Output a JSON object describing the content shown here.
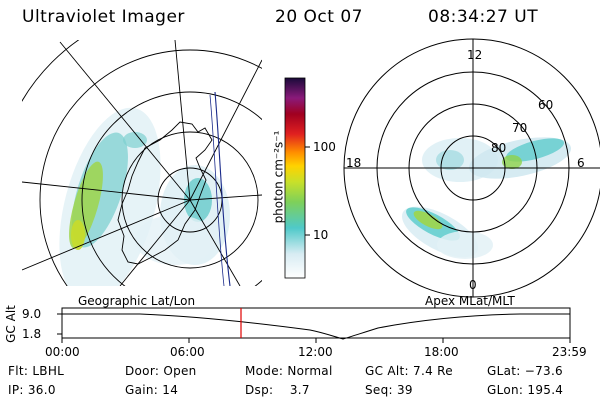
{
  "header": {
    "instrument": "Ultraviolet Imager",
    "date": "20 Oct 07",
    "time": "08:34:27 UT"
  },
  "left_panel": {
    "label": "Geographic Lat/Lon"
  },
  "right_panel": {
    "label": "Apex MLat/MLT",
    "mlt_labels": [
      "12",
      "18",
      "6",
      "0"
    ],
    "lat_labels": [
      "60",
      "70",
      "80"
    ]
  },
  "colorbar": {
    "unit_label": "photon cm⁻²s⁻¹",
    "ticks": [
      "100",
      "10"
    ]
  },
  "timeline": {
    "axis_label": "GC Alt",
    "y_ticks": [
      "9.0",
      "1.8"
    ],
    "x_ticks": [
      "00:00",
      "06:00",
      "12:00",
      "18:00",
      "23:59"
    ],
    "marker_color": "#e00000"
  },
  "info": {
    "row1": [
      {
        "label": "Flt:",
        "value": "LBHL"
      },
      {
        "label": "Door:",
        "value": "Open"
      },
      {
        "label": "Mode:",
        "value": "Normal"
      },
      {
        "label": "GC Alt:",
        "value": "7.4 Re"
      },
      {
        "label": "GLat:",
        "value": "−73.6"
      }
    ],
    "row2": [
      {
        "label": "IP:",
        "value": "36.0"
      },
      {
        "label": "Gain:",
        "value": "14"
      },
      {
        "label": "Dsp:",
        "value": "3.7"
      },
      {
        "label": "Seq:",
        "value": "39"
      },
      {
        "label": "GLon:",
        "value": "195.4"
      }
    ]
  },
  "colors": {
    "aurora_low": "#cfe9f0",
    "aurora_mid": "#4fc9c9",
    "aurora_high": "#8fd24a",
    "aurora_peak": "#c8dc2a"
  }
}
